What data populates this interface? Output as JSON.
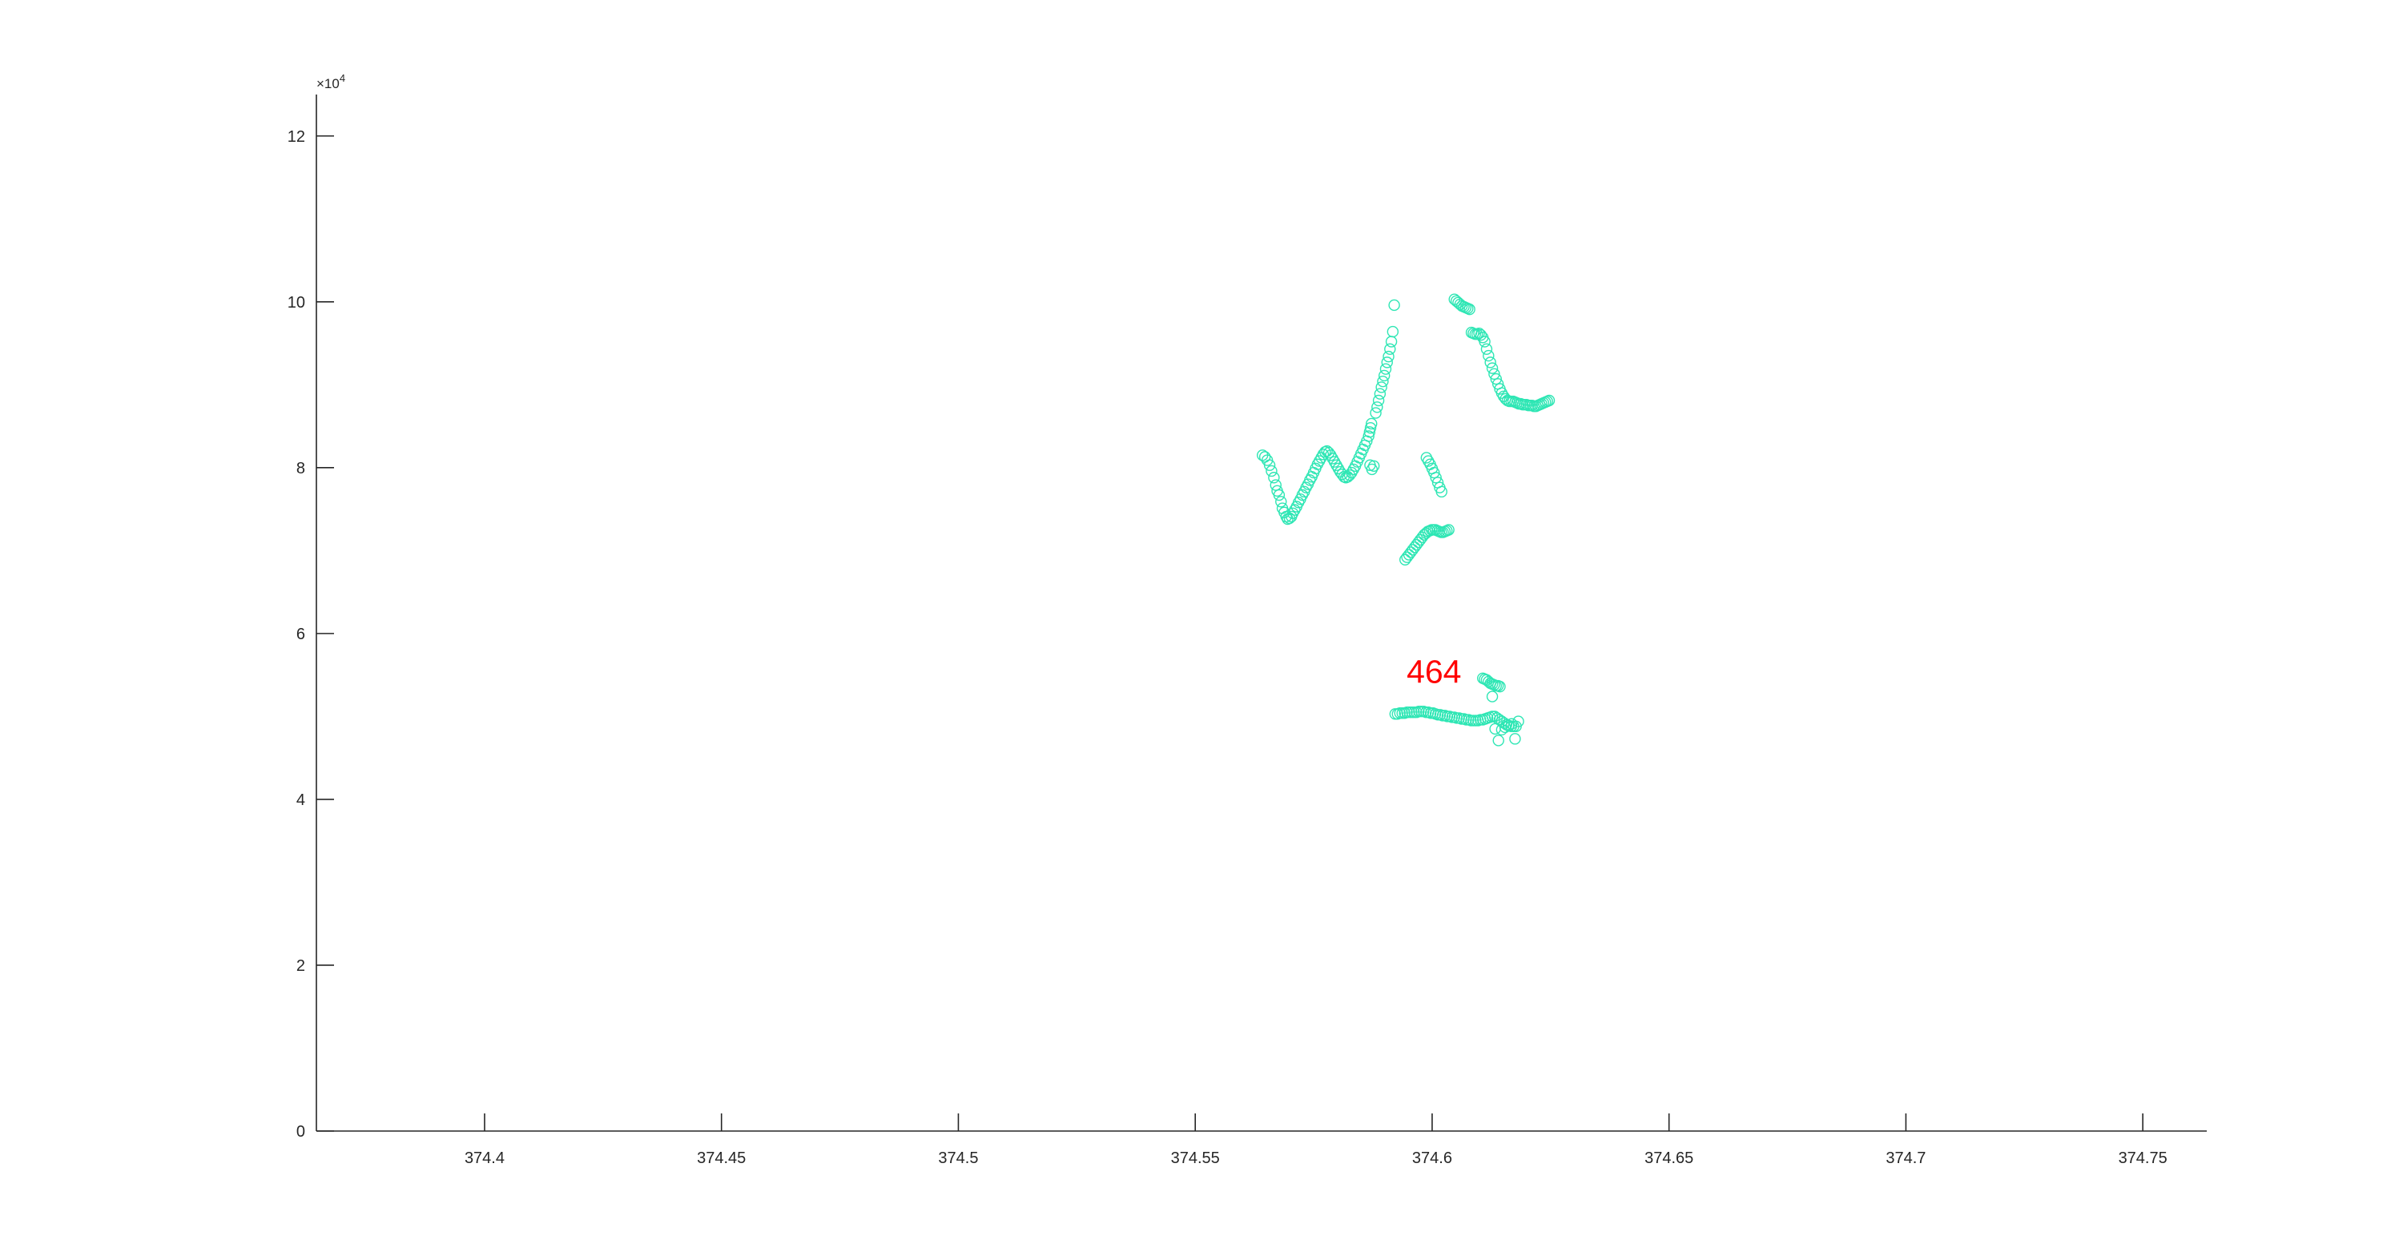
{
  "chart_data": {
    "type": "scatter",
    "title": "",
    "xlabel": "",
    "ylabel": "",
    "xlim": [
      374.3645,
      374.7635
    ],
    "ylim": [
      0,
      125000
    ],
    "y_exponent_label": "×10",
    "y_exponent_power": "4",
    "x_ticks": [
      374.4,
      374.45,
      374.5,
      374.55,
      374.6,
      374.65,
      374.7,
      374.75
    ],
    "x_tick_labels": [
      "374.4",
      "374.45",
      "374.5",
      "374.55",
      "374.6",
      "374.65",
      "374.7",
      "374.75"
    ],
    "y_ticks": [
      0,
      20000,
      40000,
      60000,
      80000,
      100000,
      120000
    ],
    "y_tick_labels": [
      "0",
      "2",
      "4",
      "6",
      "8",
      "10",
      "12"
    ],
    "grid": false,
    "marker": "open-circle",
    "marker_color": "#2ee6b4",
    "annotation": {
      "text": "464",
      "x": 374.6004,
      "y": 55000,
      "color": "#ff0000"
    },
    "series": [
      {
        "x": [
          374.5642,
          374.5647,
          374.5652,
          374.5657,
          374.5661,
          374.5666,
          374.567,
          374.5673,
          374.5677,
          374.5681,
          374.5684,
          374.5688,
          374.5692,
          374.5695,
          374.5699,
          374.5703,
          374.5706,
          374.571,
          374.5714,
          374.5718,
          374.5722,
          374.5726,
          374.573,
          374.5734,
          374.5738,
          374.5742,
          374.5746,
          374.575,
          374.5754,
          374.5758,
          374.5762,
          374.5766,
          374.577,
          374.5774,
          374.5778,
          374.5782,
          374.5786,
          374.579,
          374.5794,
          374.5798,
          374.5802,
          374.5806,
          374.581,
          374.5814,
          374.5818,
          374.5822,
          374.5826,
          374.583,
          374.5834,
          374.5838,
          374.5842,
          374.5846,
          374.585,
          374.5854,
          374.5858,
          374.5862,
          374.5866,
          374.5868,
          374.587,
          374.5872
        ],
        "y": [
          81500,
          81300,
          80900,
          80300,
          79600,
          78800,
          77900,
          77200,
          76700,
          75900,
          75100,
          74600,
          74100,
          73800,
          73900,
          74100,
          74500,
          74900,
          75300,
          75800,
          76200,
          76700,
          77100,
          77600,
          78000,
          78500,
          78900,
          79400,
          79900,
          80400,
          80800,
          81200,
          81600,
          81900,
          82000,
          81800,
          81500,
          81100,
          80700,
          80300,
          79900,
          79500,
          79200,
          78900,
          78800,
          78900,
          79100,
          79400,
          79800,
          80200,
          80700,
          81200,
          81700,
          82200,
          82700,
          83200,
          83800,
          84300,
          84800,
          85300
        ]
      },
      {
        "x": [
          374.5869,
          374.5873,
          374.5877,
          374.5881,
          374.5884,
          374.5887,
          374.589,
          374.5893,
          374.5896,
          374.5899,
          374.5902,
          374.5905,
          374.5908,
          374.5911,
          374.5914,
          374.5917,
          374.592
        ],
        "y": [
          80300,
          79800,
          80200,
          86600,
          87300,
          88100,
          88900,
          89700,
          90400,
          91100,
          91900,
          92700,
          93400,
          94300,
          95200,
          96400,
          99600
        ]
      },
      {
        "x": [
          374.6047,
          374.6051,
          374.6055,
          374.6059,
          374.6063,
          374.6067,
          374.6071,
          374.6075,
          374.6079,
          374.6083,
          374.6087,
          374.6091,
          374.6095,
          374.6099,
          374.6103,
          374.6107,
          374.6111,
          374.6115,
          374.6119,
          374.6123,
          374.6127,
          374.6131,
          374.6135,
          374.6139,
          374.6143,
          374.6147,
          374.6151,
          374.6155,
          374.6159,
          374.6163,
          374.6167,
          374.6171,
          374.6175,
          374.6179,
          374.6183,
          374.6187,
          374.6191,
          374.6195,
          374.6199,
          374.6203,
          374.6207,
          374.6211,
          374.6215,
          374.6219,
          374.6223,
          374.6227,
          374.6231,
          374.6235,
          374.6239,
          374.6243,
          374.6247
        ],
        "y": [
          100300,
          100100,
          99900,
          99700,
          99500,
          99400,
          99300,
          99200,
          99100,
          96300,
          96200,
          96100,
          96100,
          96200,
          96000,
          95700,
          95200,
          94300,
          93500,
          92700,
          92000,
          91300,
          90700,
          90100,
          89500,
          89000,
          88600,
          88300,
          88100,
          88000,
          88000,
          88000,
          87900,
          87800,
          87700,
          87700,
          87600,
          87600,
          87600,
          87500,
          87500,
          87500,
          87400,
          87400,
          87500,
          87600,
          87700,
          87800,
          87900,
          88000,
          88100
        ]
      },
      {
        "x": [
          374.5988,
          374.5992,
          374.5996,
          374.6,
          374.6004,
          374.6008,
          374.6012,
          374.6016,
          374.602
        ],
        "y": [
          81200,
          80800,
          80400,
          79900,
          79400,
          78800,
          78200,
          77600,
          77100
        ]
      },
      {
        "x": [
          374.5943,
          374.5947,
          374.5951,
          374.5955,
          374.5959,
          374.5963,
          374.5967,
          374.5971,
          374.5975,
          374.5979,
          374.5983,
          374.5987,
          374.5991,
          374.5995,
          374.5999,
          374.6003,
          374.6007,
          374.6011,
          374.6015,
          374.6019,
          374.6023,
          374.6027,
          374.6031,
          374.6035
        ],
        "y": [
          68900,
          69200,
          69500,
          69800,
          70100,
          70400,
          70700,
          71000,
          71300,
          71600,
          71900,
          72100,
          72300,
          72400,
          72500,
          72500,
          72500,
          72400,
          72300,
          72200,
          72200,
          72300,
          72400,
          72500
        ]
      },
      {
        "x": [
          374.5922,
          374.5927,
          374.5932,
          374.5937,
          374.5942,
          374.5947,
          374.5952,
          374.5957,
          374.5962,
          374.5967,
          374.5972,
          374.5977,
          374.5982,
          374.5987,
          374.5992,
          374.5997,
          374.6002,
          374.6007,
          374.6012,
          374.6017,
          374.6022,
          374.6027,
          374.6032,
          374.6037,
          374.6042,
          374.6047,
          374.6052,
          374.6057,
          374.6062,
          374.6067,
          374.6072,
          374.6077,
          374.6082,
          374.6087,
          374.6092,
          374.6097,
          374.6102,
          374.6107,
          374.6112,
          374.6117,
          374.6122,
          374.6127,
          374.6132,
          374.6137,
          374.6142,
          374.6147,
          374.6152,
          374.6157,
          374.6162,
          374.6167,
          374.6172,
          374.6177
        ],
        "y": [
          50300,
          50300,
          50400,
          50400,
          50400,
          50500,
          50500,
          50500,
          50500,
          50500,
          50600,
          50600,
          50600,
          50500,
          50500,
          50400,
          50400,
          50300,
          50200,
          50200,
          50100,
          50100,
          50000,
          50000,
          49900,
          49900,
          49800,
          49800,
          49700,
          49700,
          49600,
          49600,
          49500,
          49500,
          49500,
          49500,
          49600,
          49600,
          49700,
          49800,
          49900,
          50000,
          50000,
          49800,
          49600,
          49400,
          49200,
          49000,
          48900,
          48800,
          48800,
          48800
        ]
      },
      {
        "x": [
          374.6107,
          374.6111,
          374.6115,
          374.6119,
          374.6123,
          374.6127,
          374.6131,
          374.6135,
          374.6139,
          374.6143
        ],
        "y": [
          54600,
          54500,
          54400,
          54200,
          54000,
          53900,
          53800,
          53700,
          53700,
          53600
        ]
      },
      {
        "x": [
          374.6127,
          374.6133,
          374.614,
          374.6147,
          374.6154,
          374.6161,
          374.6168,
          374.6175,
          374.6182
        ],
        "y": [
          52400,
          48500,
          47100,
          48400,
          48700,
          48900,
          49100,
          47300,
          49400
        ]
      }
    ]
  }
}
